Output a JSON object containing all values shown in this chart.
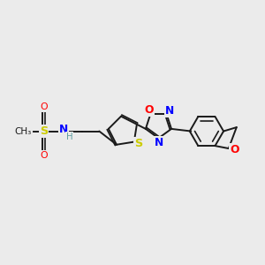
{
  "bg_color": "#ebebeb",
  "bond_color": "#1a1a1a",
  "bond_width": 1.4,
  "S_color": "#cccc00",
  "N_color": "#0000ff",
  "O_color": "#ff0000",
  "H_color": "#5f9ea0",
  "figsize": [
    3.0,
    3.0
  ],
  "dpi": 100,
  "xlim": [
    0,
    10
  ],
  "ylim": [
    0,
    10
  ]
}
